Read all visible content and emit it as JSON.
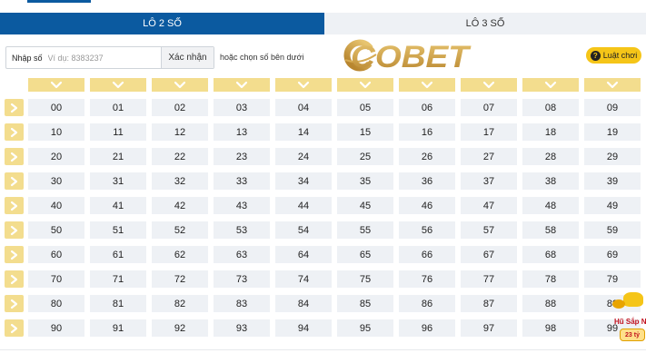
{
  "tabs": [
    {
      "label": "LÔ 2 SỐ",
      "active": true
    },
    {
      "label": "LÔ 3 SỐ",
      "active": false
    }
  ],
  "input": {
    "label": "Nhập số",
    "placeholder": "Ví dụ: 8383237",
    "value": "",
    "confirm_label": "Xác nhận"
  },
  "hint": "hoặc chọn số bên dưới",
  "logo": {
    "text": "COBET"
  },
  "rules_button": {
    "label": "Luật chơi",
    "icon": "question-icon"
  },
  "grid": {
    "column_header_icon": "chevron-down-icon",
    "row_select_icon": "chevron-right-icon",
    "rows": [
      [
        "00",
        "01",
        "02",
        "03",
        "04",
        "05",
        "06",
        "07",
        "08",
        "09"
      ],
      [
        "10",
        "11",
        "12",
        "13",
        "14",
        "15",
        "16",
        "17",
        "18",
        "19"
      ],
      [
        "20",
        "21",
        "22",
        "23",
        "24",
        "25",
        "26",
        "27",
        "28",
        "29"
      ],
      [
        "30",
        "31",
        "32",
        "33",
        "34",
        "35",
        "36",
        "37",
        "38",
        "39"
      ],
      [
        "40",
        "41",
        "42",
        "43",
        "44",
        "45",
        "46",
        "47",
        "48",
        "49"
      ],
      [
        "50",
        "51",
        "52",
        "53",
        "54",
        "55",
        "56",
        "57",
        "58",
        "59"
      ],
      [
        "60",
        "61",
        "62",
        "63",
        "64",
        "65",
        "66",
        "67",
        "68",
        "69"
      ],
      [
        "70",
        "71",
        "72",
        "73",
        "74",
        "75",
        "76",
        "77",
        "78",
        "79"
      ],
      [
        "80",
        "81",
        "82",
        "83",
        "84",
        "85",
        "86",
        "87",
        "88",
        "89"
      ],
      [
        "90",
        "91",
        "92",
        "93",
        "94",
        "95",
        "96",
        "97",
        "98",
        "99"
      ]
    ]
  },
  "jackpot": {
    "title": "Hũ Sắp N",
    "amount": "23 tỷ"
  },
  "colors": {
    "tab_active": "#0b5aa0",
    "tab_inactive": "#eef1f5",
    "select_buttons": "#f3dd8e",
    "cell": "#eef1f5",
    "rules_button": "#f5c518",
    "logo_gold": "#c9a04a"
  }
}
